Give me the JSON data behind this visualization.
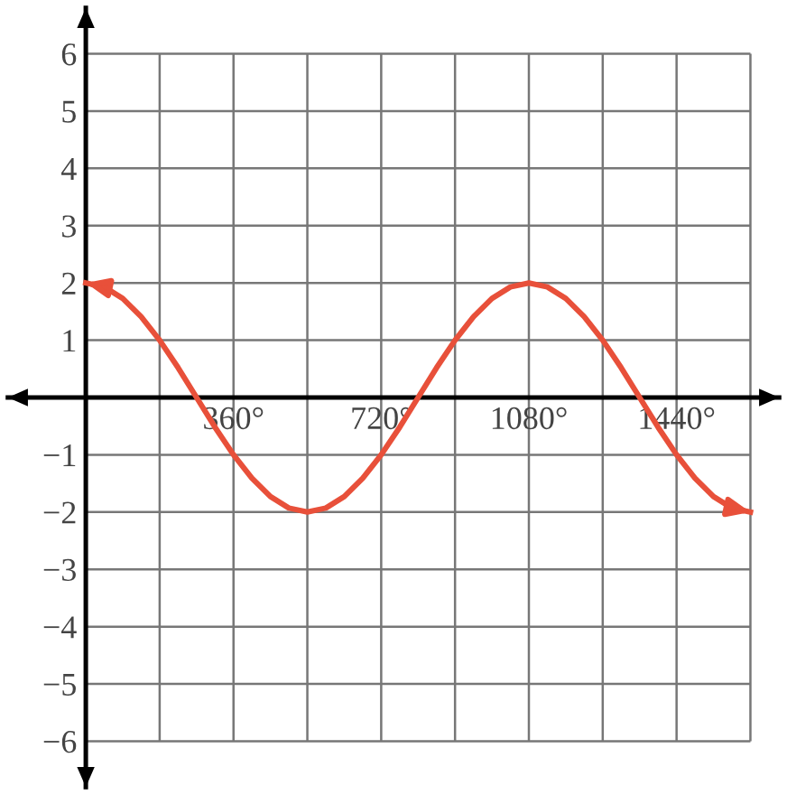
{
  "chart_data": {
    "type": "line",
    "x": [
      0,
      45,
      90,
      135,
      180,
      225,
      270,
      315,
      360,
      405,
      450,
      495,
      540,
      585,
      630,
      675,
      720,
      765,
      810,
      855,
      900,
      945,
      990,
      1035,
      1080,
      1125,
      1170,
      1215,
      1260,
      1305,
      1350,
      1395,
      1440,
      1485,
      1530,
      1575,
      1620
    ],
    "series": [
      {
        "color": "#e8503a",
        "values": [
          2,
          1.93,
          1.73,
          1.41,
          1,
          0.52,
          0,
          -0.52,
          -1,
          -1.41,
          -1.73,
          -1.93,
          -2,
          -1.93,
          -1.73,
          -1.41,
          -1,
          -0.52,
          0,
          0.52,
          1,
          1.41,
          1.73,
          1.93,
          2,
          1.93,
          1.73,
          1.41,
          1,
          0.52,
          0,
          -0.52,
          -1,
          -1.41,
          -1.73,
          -1.93,
          -2
        ]
      }
    ],
    "xlim": [
      -190,
      1690
    ],
    "ylim": [
      -6.8,
      6.8
    ],
    "xticks": [
      {
        "value": 0,
        "label": null
      },
      {
        "value": 180,
        "label": null
      },
      {
        "value": 360,
        "label": "360°"
      },
      {
        "value": 540,
        "label": null
      },
      {
        "value": 720,
        "label": "720°"
      },
      {
        "value": 900,
        "label": null
      },
      {
        "value": 1080,
        "label": "1080°"
      },
      {
        "value": 1260,
        "label": null
      },
      {
        "value": 1440,
        "label": "1440°"
      },
      {
        "value": 1620,
        "label": null
      }
    ],
    "yticks": [
      {
        "value": -6,
        "label": "−6"
      },
      {
        "value": -5,
        "label": "−5"
      },
      {
        "value": -4,
        "label": "−4"
      },
      {
        "value": -3,
        "label": "−3"
      },
      {
        "value": -2,
        "label": "−2"
      },
      {
        "value": -1,
        "label": "−1"
      },
      {
        "value": 0,
        "label": null
      },
      {
        "value": 1,
        "label": "1"
      },
      {
        "value": 2,
        "label": "2"
      },
      {
        "value": 3,
        "label": "3"
      },
      {
        "value": 4,
        "label": "4"
      },
      {
        "value": 5,
        "label": "5"
      },
      {
        "value": 6,
        "label": "6"
      }
    ],
    "grid": true,
    "marker": "none",
    "line_style": "solid"
  }
}
